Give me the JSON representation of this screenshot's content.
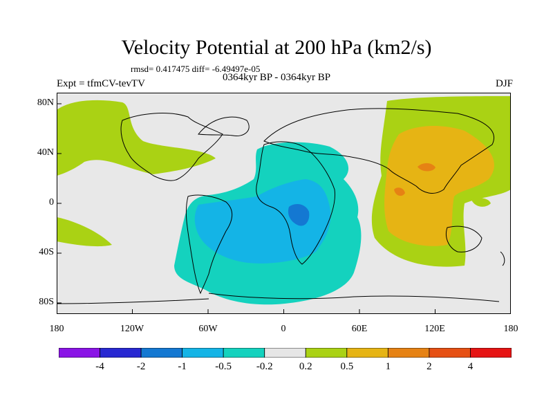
{
  "header": {
    "title": "Velocity Potential at 200 hPa (km2/s)",
    "stats": "rmsd= 0.417475 diff= -6.49497e-05",
    "experiment": "Expt = tfmCV-tevTV",
    "period": "0364kyr BP - 0364kyr BP",
    "season": "DJF"
  },
  "axes": {
    "x_ticks": [
      "180",
      "120W",
      "60W",
      "0",
      "60E",
      "120E",
      "180"
    ],
    "y_ticks": [
      "80N",
      "40N",
      "0",
      "40S",
      "80S"
    ]
  },
  "colorbar": {
    "labels": [
      "-4",
      "-2",
      "-1",
      "-0.5",
      "-0.2",
      "0.2",
      "0.5",
      "1",
      "2",
      "4"
    ],
    "colors": [
      "#8a14e6",
      "#2828d2",
      "#1478d2",
      "#14b4e6",
      "#14d2be",
      "#e6e6e6",
      "#aad214",
      "#e6b414",
      "#e68214",
      "#e65014",
      "#e61414"
    ]
  },
  "colors": {
    "ocean": "#e8e8e8",
    "neg_weak": "#14d2be",
    "neg_mod": "#14b4e6",
    "neg_strong": "#1478d2",
    "pos_weak": "#aad214",
    "pos_mod": "#e6b414",
    "pos_strong": "#e68214"
  }
}
